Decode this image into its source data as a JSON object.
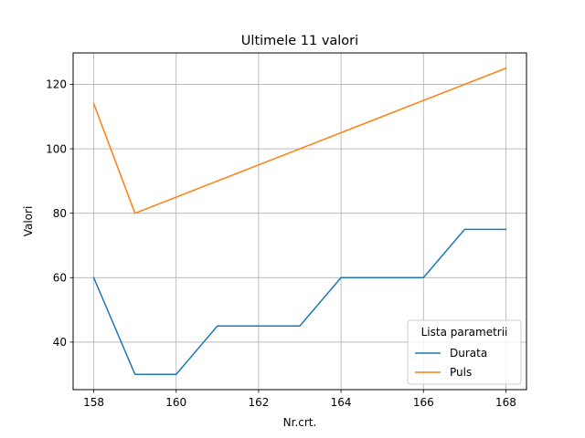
{
  "chart_data": {
    "type": "line",
    "title": "Ultimele 11 valori",
    "xlabel": "Nr.crt.",
    "ylabel": "Valori",
    "x": [
      158,
      159,
      160,
      161,
      162,
      163,
      164,
      165,
      166,
      167,
      168
    ],
    "xlim": [
      157.5,
      168.5
    ],
    "ylim": [
      25.25,
      129.75
    ],
    "xticks": [
      158,
      160,
      162,
      164,
      166,
      168
    ],
    "yticks": [
      40,
      60,
      80,
      100,
      120
    ],
    "grid": true,
    "legend": {
      "title": "Lista parametrii",
      "placement": "lower-right"
    },
    "series": [
      {
        "name": "Durata",
        "color": "#1f77b4",
        "values": [
          60,
          30,
          30,
          45,
          45,
          45,
          60,
          60,
          60,
          75,
          75
        ]
      },
      {
        "name": "Puls",
        "color": "#ff7f0e",
        "values": [
          114,
          80,
          85,
          90,
          95,
          100,
          105,
          110,
          115,
          120,
          125
        ]
      }
    ]
  }
}
